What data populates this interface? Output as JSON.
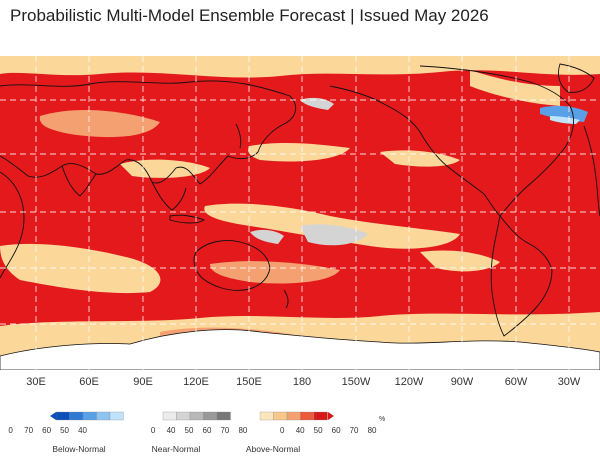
{
  "title": "Probabilistic Multi-Model Ensemble Forecast | Issued May 2026",
  "map": {
    "longitude_labels": [
      "30E",
      "60E",
      "90E",
      "120E",
      "150E",
      "180",
      "150W",
      "120W",
      "90W",
      "60W",
      "30W"
    ],
    "colors": {
      "ocean_above_strong": "#e3191c",
      "above_mid": "#f4a070",
      "above_low": "#fbd79a",
      "near_normal": "#d4d4d4",
      "below_normal": "#5aa0e6",
      "antarctica": "#ffffff",
      "grid": "#ffffff",
      "coast": "#111111"
    }
  },
  "legend": {
    "unit": "%",
    "below": {
      "label": "Below-Normal",
      "ticks": [
        "0",
        "70",
        "60",
        "50",
        "40"
      ],
      "colors": [
        "#0b4fb8",
        "#2f79d6",
        "#5aa0e6",
        "#8ec4f2",
        "#bfe3fa"
      ]
    },
    "near": {
      "label": "Near-Normal",
      "ticks": [
        "0",
        "40",
        "50",
        "60",
        "70",
        "80"
      ],
      "colors": [
        "#ececec",
        "#d4d4d4",
        "#b8b8b8",
        "#999999",
        "#777777"
      ]
    },
    "above": {
      "label": "Above-Normal",
      "ticks": [
        "0",
        "40",
        "50",
        "60",
        "70",
        "80"
      ],
      "colors": [
        "#fbe6bd",
        "#f8c88a",
        "#f4a070",
        "#ec5b3b",
        "#d7191c"
      ]
    }
  }
}
